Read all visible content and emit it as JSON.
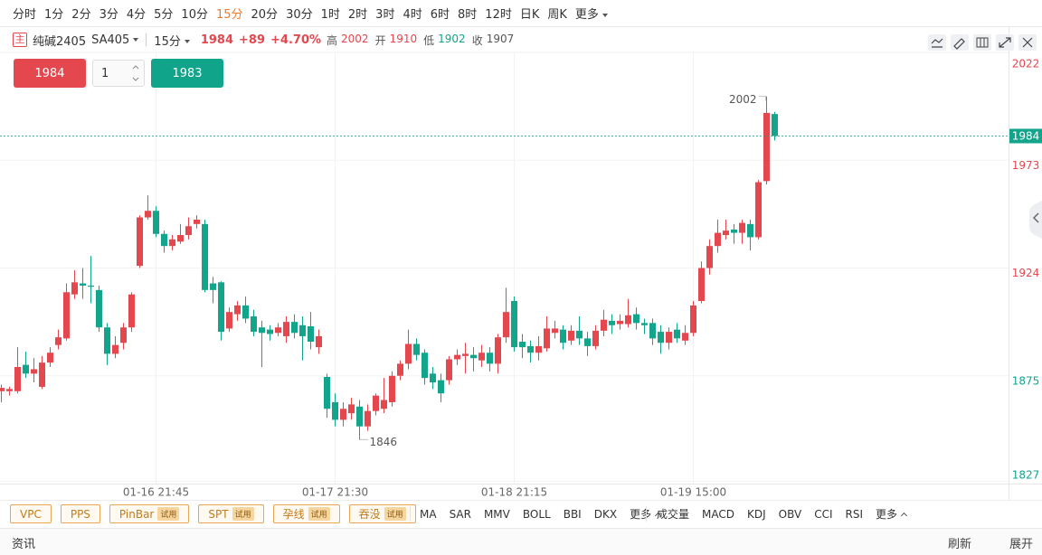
{
  "toolbar": {
    "timeframes": [
      "分时",
      "1分",
      "2分",
      "3分",
      "4分",
      "5分",
      "10分",
      "15分",
      "20分",
      "30分",
      "1时",
      "2时",
      "3时",
      "4时",
      "6时",
      "8时",
      "12时",
      "日K",
      "周K"
    ],
    "more": "更多",
    "active": 7
  },
  "quote": {
    "icon": "主",
    "name": "纯碱2405",
    "code": "SA405",
    "period": "15分",
    "last": "1984",
    "change": "+89",
    "change_pct": "+4.70%",
    "stats": [
      {
        "label": "高",
        "value": "2002",
        "color": "#e5474f"
      },
      {
        "label": "开",
        "value": "1910",
        "color": "#e5474f"
      },
      {
        "label": "低",
        "value": "1902",
        "color": "#12a58c"
      },
      {
        "label": "收",
        "value": "1907",
        "color": "#555555"
      }
    ]
  },
  "order": {
    "sell": "1984",
    "qty": "1",
    "buy": "1983"
  },
  "indicators": {
    "patterns": [
      {
        "name": "VPC"
      },
      {
        "name": "PPS"
      },
      {
        "name": "PinBar",
        "tag": "试用"
      },
      {
        "name": "SPT",
        "tag": "试用"
      },
      {
        "name": "孕线",
        "tag": "试用"
      },
      {
        "name": "吞没",
        "tag": "试用"
      }
    ],
    "main": [
      "MA",
      "SAR",
      "MMV",
      "BOLL",
      "BBI",
      "DKX",
      "更多"
    ],
    "sub": [
      "成交量",
      "MACD",
      "KDJ",
      "OBV",
      "CCI",
      "RSI",
      "更多"
    ]
  },
  "footer": {
    "news": "资讯",
    "refresh": "刷新",
    "expand": "展开"
  },
  "chart_data": {
    "type": "candlestick",
    "categories": [
      null,
      null,
      null,
      null,
      null,
      null,
      null,
      null,
      null,
      null,
      null,
      null,
      null,
      null,
      null,
      null,
      null,
      null,
      null,
      "01-16 21:45",
      null,
      null,
      null,
      null,
      null,
      null,
      null,
      null,
      null,
      null,
      null,
      null,
      null,
      null,
      null,
      null,
      null,
      null,
      null,
      null,
      null,
      "01-17 21:30",
      null,
      null,
      null,
      null,
      null,
      null,
      null,
      null,
      null,
      null,
      null,
      null,
      null,
      null,
      null,
      null,
      null,
      null,
      null,
      null,
      null,
      "01-18 21:15",
      null,
      null,
      null,
      null,
      null,
      null,
      null,
      null,
      null,
      null,
      null,
      null,
      null,
      null,
      null,
      null,
      null,
      null,
      null,
      null,
      null,
      "01-19 15:00",
      null,
      null,
      null,
      null,
      null,
      null,
      null,
      null,
      null,
      null
    ],
    "open": [
      1868,
      1868,
      1868,
      1880,
      1876,
      1870,
      1881,
      1889,
      1892,
      1912,
      1917,
      1916,
      1914,
      1897,
      1885,
      1890,
      1897,
      1925,
      1947,
      1950,
      1939.5,
      1934,
      1936,
      1939,
      1944,
      1944,
      1917,
      1917.5,
      1896.5,
      1903,
      1907,
      1902,
      1897,
      1896,
      1894.5,
      1893,
      1899.5,
      1898,
      1897.5,
      1888,
      1874.5,
      1863,
      1855,
      1858,
      1861,
      1852,
      1859,
      1860,
      1863,
      1875,
      1880.5,
      1889.5,
      1885.5,
      1876,
      1873,
      1873,
      1882.5,
      1884,
      1884.5,
      1882,
      1885.5,
      1880.5,
      1892.5,
      1909,
      1890.5,
      1888.5,
      1885.5,
      1887.5,
      1894.5,
      1896,
      1891,
      1895.5,
      1892,
      1888.5,
      1895.5,
      1900,
      1898.5,
      1898.5,
      1903,
      1899,
      1899,
      1895,
      1890,
      1896,
      1891,
      1894.5,
      1909,
      1924,
      1934,
      1939,
      1941.5,
      1940,
      1944,
      1938,
      1963.5,
      1994
    ],
    "high": [
      1871,
      1870,
      1888,
      1886,
      1883,
      1884,
      1888,
      1896,
      1917,
      1923,
      1924,
      1929.5,
      1916,
      1899,
      1893,
      1899,
      1913,
      1948,
      1957,
      1952,
      1941,
      1939,
      1944,
      1947,
      1948,
      1946,
      1920,
      1918,
      1906,
      1909,
      1911,
      1905,
      1900,
      1898,
      1899,
      1902,
      1903,
      1902,
      1904,
      1896,
      1876,
      1867,
      1863,
      1865,
      1864,
      1862,
      1867,
      1874,
      1877,
      1882,
      1896,
      1892,
      1887,
      1879,
      1876,
      1884,
      1887,
      1890,
      1888,
      1889,
      1888,
      1894,
      1915,
      1911,
      1894,
      1891,
      1893,
      1902,
      1900,
      1898,
      1898,
      1902,
      1895,
      1898,
      1905,
      1903,
      1903,
      1910,
      1906,
      1901,
      1901,
      1898,
      1897,
      1899,
      1898,
      1909,
      1927,
      1937,
      1946,
      1946,
      1944,
      1946,
      1946,
      1964,
      2002,
      1995
    ],
    "low": [
      1863,
      1866,
      1867,
      1874,
      1872,
      1869,
      1879,
      1887,
      1891,
      1910,
      1910,
      1908,
      1895,
      1880,
      1883,
      1887,
      1895,
      1924,
      1946,
      1938,
      1931,
      1932,
      1935,
      1937,
      1942,
      1913,
      1908,
      1891,
      1895,
      1900,
      1899,
      1893,
      1879,
      1891,
      1893,
      1890,
      1892,
      1882,
      1887,
      1885,
      1856,
      1852,
      1852,
      1855,
      1846,
      1850,
      1857,
      1858,
      1861,
      1873,
      1878,
      1882,
      1871,
      1869,
      1863,
      1871,
      1880,
      1876,
      1877,
      1879,
      1877,
      1876,
      1890,
      1886,
      1883,
      1881,
      1882,
      1886,
      1892,
      1887,
      1889,
      1889,
      1884,
      1887,
      1893,
      1894,
      1896,
      1897,
      1896,
      1894,
      1889,
      1885,
      1887,
      1890,
      1889,
      1893,
      1908,
      1921,
      1931,
      1937,
      1935,
      1935,
      1932,
      1937,
      1962,
      1982
    ],
    "close": [
      1869.5,
      1869,
      1879,
      1876,
      1878,
      1881,
      1885.5,
      1892.5,
      1913,
      1917.5,
      1916,
      1915.5,
      1897,
      1885,
      1889,
      1897,
      1912,
      1947,
      1950,
      1939.5,
      1934,
      1937,
      1939,
      1943,
      1946,
      1914,
      1914,
      1895,
      1904,
      1907,
      1901,
      1895,
      1894.5,
      1894,
      1897,
      1899.5,
      1894.5,
      1893,
      1890.5,
      1893,
      1860,
      1855,
      1860,
      1862,
      1852,
      1859,
      1866,
      1864,
      1875,
      1880.5,
      1889.5,
      1884.5,
      1874,
      1872,
      1867,
      1882.5,
      1884.5,
      1885,
      1883,
      1885.5,
      1880.5,
      1892.5,
      1904,
      1888,
      1888,
      1885.5,
      1888.5,
      1896.5,
      1896.5,
      1890,
      1895.5,
      1892,
      1888.5,
      1895.5,
      1900.5,
      1898,
      1900,
      1902.5,
      1899,
      1898,
      1892,
      1890,
      1895,
      1892,
      1894.5,
      1907,
      1924,
      1934,
      1940,
      1941,
      1940,
      1944.5,
      1938,
      1963,
      1994.5,
      1984
    ],
    "ylim": [
      1826,
      2022
    ],
    "yticks": [
      1827,
      1875,
      1924,
      1973,
      2022
    ],
    "ytick_colors": [
      "#12a58c",
      "#12a58c",
      "#e5474f",
      "#e5474f",
      "#e5474f"
    ],
    "colors": {
      "up": "#e5474f",
      "down": "#12a58c"
    },
    "grid": true
  }
}
